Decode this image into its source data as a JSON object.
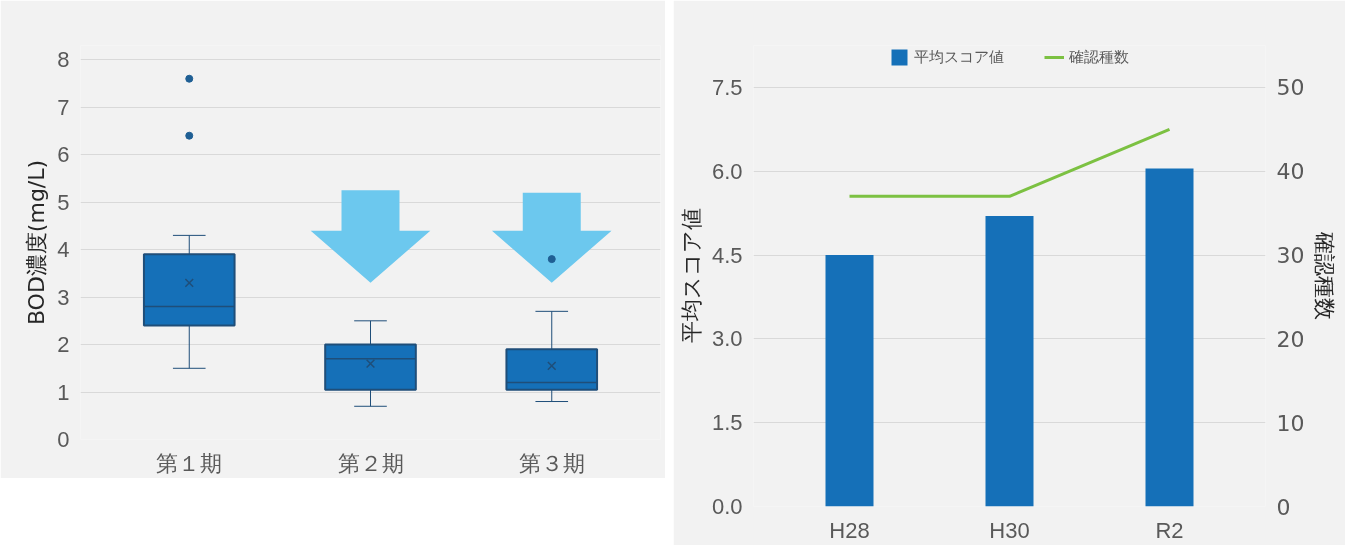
{
  "chart_data": [
    {
      "type": "box",
      "categories": [
        "第１期",
        "第２期",
        "第３期"
      ],
      "ylabel": "BOD濃度(mg/L)",
      "ylim": [
        0,
        8.3
      ],
      "yticks": [
        0,
        1,
        2,
        3,
        4,
        5,
        6,
        7,
        8
      ],
      "grid": "y",
      "series": [
        {
          "color": "#1570b8",
          "boxes": [
            {
              "low": 1.5,
              "q1": 2.4,
              "median": 2.8,
              "q3": 3.9,
              "high": 4.3,
              "mean": 3.3,
              "outliers": [
                6.4,
                7.6
              ]
            },
            {
              "low": 0.7,
              "q1": 1.05,
              "median": 1.7,
              "q3": 2.0,
              "high": 2.5,
              "mean": 1.6
            },
            {
              "low": 0.8,
              "q1": 1.05,
              "median": 1.2,
              "q3": 1.9,
              "high": 2.7,
              "mean": 1.55,
              "outliers": [
                3.8
              ]
            }
          ]
        }
      ]
    },
    {
      "type": "bar",
      "categories": [
        "H28",
        "H30",
        "R2"
      ],
      "ylabel": "平均スコア値",
      "y2label": "確認種数",
      "ylim": [
        0,
        8.25
      ],
      "yticks": [
        {
          "value": 0,
          "label": "0.0"
        },
        1.5,
        {
          "value": 3,
          "label": "3.0"
        },
        4.5,
        {
          "value": 6,
          "label": "6.0"
        },
        7.5
      ],
      "y2lim": [
        0,
        55
      ],
      "y2ticks": [
        0,
        10,
        20,
        30,
        40,
        50
      ],
      "grid": "y",
      "legend": "top",
      "series": [
        {
          "name": "平均スコア値",
          "color": "#1570b8",
          "values": [
            4.5,
            5.2,
            6.05
          ]
        },
        {
          "name": "確認種数",
          "type": "line",
          "axis": "y2",
          "color": "#7cc142",
          "values": [
            37,
            37,
            45
          ]
        }
      ]
    }
  ]
}
